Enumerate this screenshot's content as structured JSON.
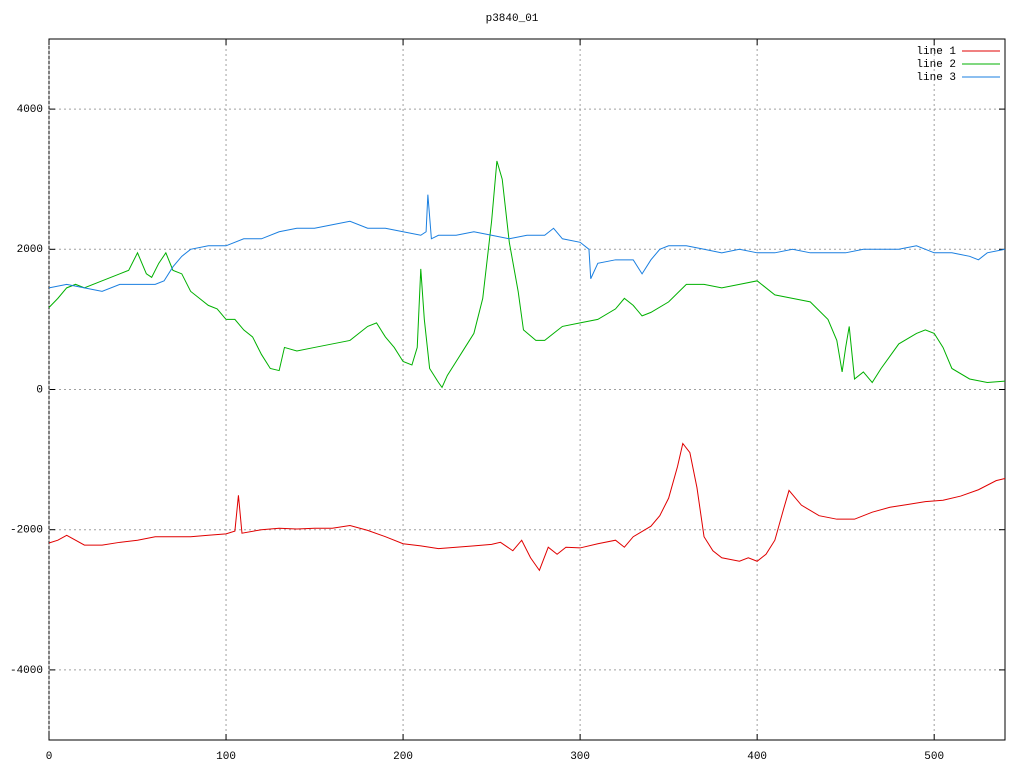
{
  "chart_data": {
    "type": "line",
    "title": "p3840_01",
    "xlim": [
      0,
      540
    ],
    "ylim": [
      -5000,
      5000
    ],
    "xticks": [
      0,
      100,
      200,
      300,
      400,
      500
    ],
    "yticks": [
      -4000,
      -2000,
      0,
      2000,
      4000
    ],
    "grid": true,
    "legend": "top-right",
    "series": [
      {
        "name": "line 1",
        "color": "#e00000",
        "x": [
          0,
          5,
          10,
          20,
          30,
          40,
          50,
          60,
          70,
          80,
          90,
          100,
          105,
          107,
          109,
          120,
          130,
          140,
          150,
          160,
          170,
          180,
          190,
          200,
          210,
          220,
          230,
          240,
          250,
          255,
          262,
          267,
          272,
          277,
          282,
          287,
          292,
          300,
          310,
          320,
          325,
          330,
          340,
          345,
          350,
          355,
          358,
          362,
          366,
          370,
          375,
          380,
          390,
          395,
          400,
          405,
          410,
          415,
          418,
          425,
          435,
          445,
          455,
          465,
          475,
          485,
          495,
          505,
          515,
          525,
          535,
          540
        ],
        "values": [
          -2190,
          -2150,
          -2080,
          -2220,
          -2220,
          -2180,
          -2150,
          -2100,
          -2100,
          -2100,
          -2080,
          -2060,
          -2020,
          -1510,
          -2050,
          -2000,
          -1980,
          -1990,
          -1980,
          -1980,
          -1940,
          -2010,
          -2100,
          -2200,
          -2230,
          -2270,
          -2250,
          -2230,
          -2210,
          -2180,
          -2300,
          -2150,
          -2400,
          -2580,
          -2250,
          -2350,
          -2250,
          -2260,
          -2200,
          -2150,
          -2250,
          -2100,
          -1950,
          -1800,
          -1550,
          -1100,
          -770,
          -900,
          -1400,
          -2100,
          -2300,
          -2400,
          -2450,
          -2400,
          -2450,
          -2350,
          -2150,
          -1700,
          -1440,
          -1650,
          -1800,
          -1850,
          -1850,
          -1750,
          -1680,
          -1640,
          -1600,
          -1580,
          -1520,
          -1430,
          -1300,
          -1270
        ]
      },
      {
        "name": "line 2",
        "color": "#00b000",
        "x": [
          0,
          5,
          10,
          15,
          20,
          30,
          40,
          45,
          50,
          55,
          58,
          62,
          66,
          70,
          75,
          80,
          85,
          90,
          95,
          100,
          105,
          110,
          115,
          120,
          125,
          130,
          133,
          140,
          150,
          160,
          170,
          180,
          185,
          190,
          195,
          200,
          205,
          208,
          210,
          212,
          215,
          220,
          222,
          225,
          230,
          235,
          240,
          245,
          250,
          253,
          256,
          260,
          265,
          268,
          275,
          280,
          285,
          290,
          300,
          310,
          320,
          325,
          330,
          335,
          340,
          350,
          360,
          370,
          380,
          390,
          400,
          410,
          420,
          430,
          440,
          445,
          448,
          450,
          452,
          455,
          460,
          465,
          470,
          480,
          490,
          495,
          500,
          505,
          510,
          520,
          530,
          540
        ],
        "values": [
          1170,
          1300,
          1450,
          1500,
          1450,
          1550,
          1650,
          1700,
          1950,
          1650,
          1600,
          1800,
          1950,
          1700,
          1650,
          1400,
          1300,
          1200,
          1150,
          1000,
          1000,
          850,
          750,
          500,
          300,
          270,
          600,
          550,
          600,
          650,
          700,
          900,
          950,
          750,
          600,
          400,
          350,
          600,
          1720,
          1000,
          300,
          100,
          30,
          200,
          400,
          600,
          800,
          1300,
          2400,
          3260,
          3000,
          2100,
          1400,
          850,
          700,
          700,
          800,
          900,
          950,
          1000,
          1150,
          1300,
          1200,
          1050,
          1100,
          1250,
          1500,
          1500,
          1450,
          1500,
          1550,
          1350,
          1300,
          1250,
          1000,
          700,
          250,
          600,
          900,
          150,
          250,
          100,
          300,
          650,
          800,
          850,
          800,
          600,
          300,
          150,
          100,
          120
        ]
      },
      {
        "name": "line 3",
        "color": "#1a7fe0",
        "x": [
          0,
          10,
          20,
          30,
          40,
          50,
          60,
          65,
          70,
          75,
          80,
          90,
          100,
          110,
          120,
          130,
          140,
          150,
          160,
          170,
          180,
          190,
          200,
          210,
          213,
          214,
          216,
          220,
          230,
          240,
          250,
          260,
          270,
          280,
          285,
          290,
          300,
          305,
          306,
          310,
          320,
          330,
          335,
          340,
          345,
          350,
          360,
          370,
          380,
          390,
          400,
          410,
          420,
          430,
          440,
          450,
          460,
          470,
          480,
          490,
          500,
          510,
          520,
          525,
          530,
          540
        ],
        "values": [
          1450,
          1500,
          1450,
          1400,
          1500,
          1500,
          1500,
          1550,
          1750,
          1900,
          2000,
          2050,
          2050,
          2150,
          2150,
          2250,
          2300,
          2300,
          2350,
          2400,
          2300,
          2300,
          2250,
          2200,
          2250,
          2780,
          2150,
          2200,
          2200,
          2250,
          2200,
          2150,
          2200,
          2200,
          2300,
          2150,
          2100,
          2000,
          1580,
          1800,
          1850,
          1850,
          1650,
          1850,
          2000,
          2050,
          2050,
          2000,
          1950,
          2000,
          1950,
          1950,
          2000,
          1950,
          1950,
          1950,
          2000,
          2000,
          2000,
          2050,
          1950,
          1950,
          1900,
          1850,
          1950,
          2000
        ]
      }
    ]
  }
}
